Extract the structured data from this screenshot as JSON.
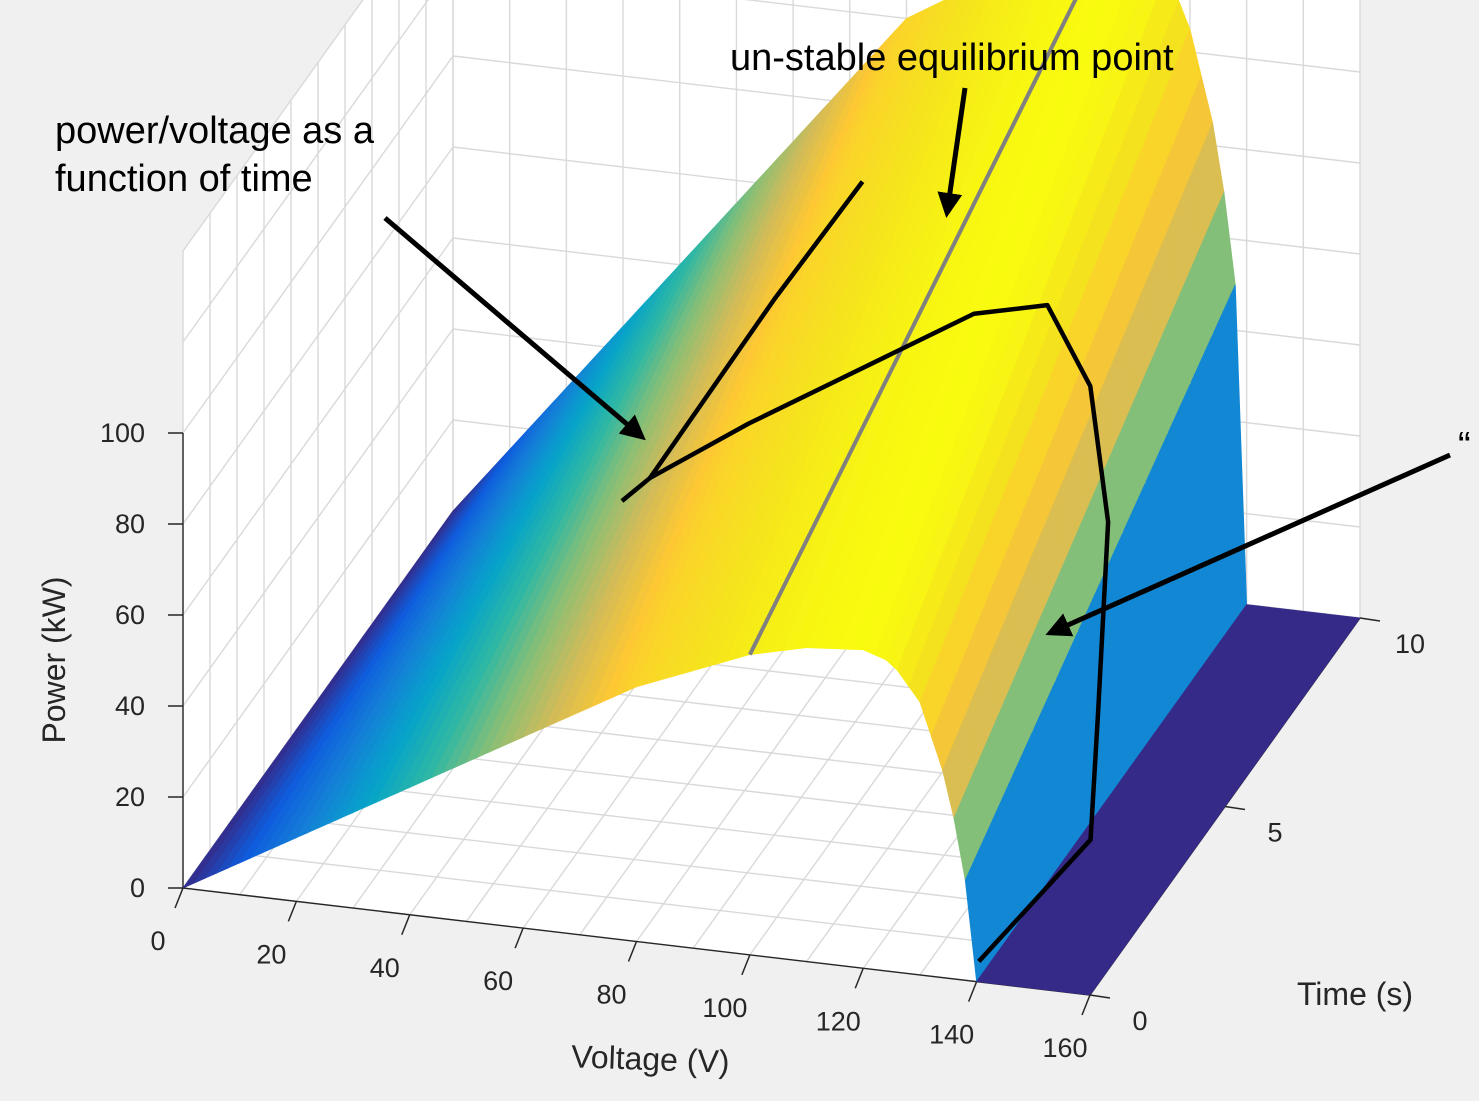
{
  "chart_data": {
    "type": "surface",
    "view": "3d",
    "xlabel": "Voltage (V)",
    "ylabel": "Time (s)",
    "zlabel": "Power (kW)",
    "xlim": [
      0,
      160
    ],
    "ylim": [
      0,
      10
    ],
    "zlim": [
      0,
      100
    ],
    "xticks": [
      0,
      20,
      40,
      60,
      80,
      100,
      120,
      140,
      160
    ],
    "yticks": [
      0,
      5,
      10
    ],
    "zticks": [
      0,
      20,
      40,
      60,
      80,
      100
    ],
    "grid": true,
    "colormap": "parula",
    "surface_profile": {
      "voltage": [
        0,
        20,
        40,
        60,
        80,
        100,
        110,
        120,
        125,
        130,
        135,
        138,
        140,
        145,
        160
      ],
      "power_at_time_0": [
        0,
        14,
        28,
        42,
        56,
        66,
        69,
        70,
        68,
        60,
        42,
        22,
        0,
        0,
        0
      ],
      "power_at_time_10": [
        0,
        30,
        60,
        90,
        120,
        135,
        142,
        145,
        140,
        125,
        100,
        70,
        0,
        0,
        0
      ]
    },
    "curves": [
      {
        "points": [
          [
            138,
            0.5,
            0
          ],
          [
            142,
            3.8,
            0
          ],
          [
            140,
            4.5,
            22
          ],
          [
            137,
            5.5,
            55
          ],
          [
            131,
            6.1,
            79
          ],
          [
            122,
            6.4,
            93
          ],
          [
            110,
            6.2,
            91
          ],
          [
            75,
            5.2,
            70
          ],
          [
            60,
            4.7,
            60
          ],
          [
            56,
            4.5,
            56
          ]
        ]
      },
      {
        "points": [
          [
            60,
            4.7,
            60
          ],
          [
            70,
            7.2,
            80
          ],
          [
            77,
            9.0,
            92
          ]
        ]
      }
    ],
    "equilibrium_line": {
      "color": "#808080",
      "points": [
        [
          100,
          0,
          66
        ],
        [
          113,
          10,
          137
        ]
      ]
    },
    "annotations": [
      "power/voltage as a function of time",
      "un-stable equilibrium point",
      "“"
    ]
  }
}
